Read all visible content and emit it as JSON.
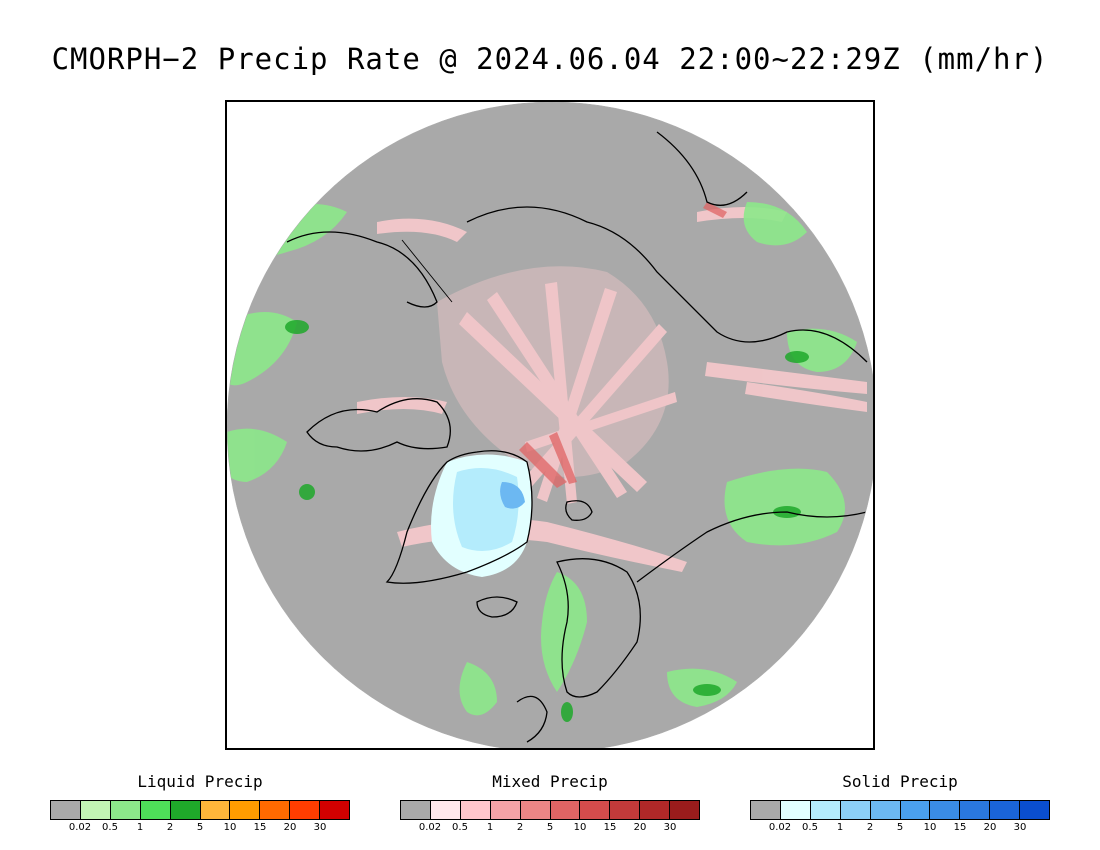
{
  "title": "CMORPH−2 Precip Rate @ 2024.06.04 22:00~22:29Z (mm/hr)",
  "map": {
    "projection": "north-polar-stereographic",
    "background_color": "#a9a9a9",
    "coastline_color": "#000000",
    "features": [
      {
        "name": "greenland-solid-precip",
        "category": "solid",
        "level": "0.02-1"
      },
      {
        "name": "arctic-ocean-mixed-precip",
        "category": "mixed",
        "level": "0.02-2"
      },
      {
        "name": "scandinavia-liquid-precip",
        "category": "liquid",
        "level": "0.5-2"
      },
      {
        "name": "canada-liquid-precip",
        "category": "liquid",
        "level": "0.5-5"
      },
      {
        "name": "siberia-liquid-precip",
        "category": "liquid",
        "level": "0.5-5"
      }
    ]
  },
  "legends": [
    {
      "title": "Liquid Precip",
      "colors": [
        "#a9a9a9",
        "#c2f5b4",
        "#8ce88a",
        "#4edf59",
        "#1fa82a",
        "#ffb63a",
        "#ff9c00",
        "#ff6a00",
        "#ff3d00",
        "#d10000"
      ],
      "ticks": [
        "0.02",
        "0.5",
        "1",
        "2",
        "5",
        "10",
        "15",
        "20",
        "30"
      ]
    },
    {
      "title": "Mixed Precip",
      "colors": [
        "#a9a9a9",
        "#ffe8ec",
        "#ffc6cc",
        "#f5a2a6",
        "#ec8585",
        "#e06464",
        "#d44c4c",
        "#c23a3a",
        "#b02828",
        "#9a1c1c"
      ],
      "ticks": [
        "0.02",
        "0.5",
        "1",
        "2",
        "5",
        "10",
        "15",
        "20",
        "30"
      ]
    },
    {
      "title": "Solid Precip",
      "colors": [
        "#a9a9a9",
        "#e2ffff",
        "#b4ecfc",
        "#8cd0f7",
        "#6cb8f2",
        "#4aa0ef",
        "#3a8ce6",
        "#2a78df",
        "#1a64d8",
        "#0a4ed0"
      ],
      "ticks": [
        "0.02",
        "0.5",
        "1",
        "2",
        "5",
        "10",
        "15",
        "20",
        "30"
      ]
    }
  ]
}
